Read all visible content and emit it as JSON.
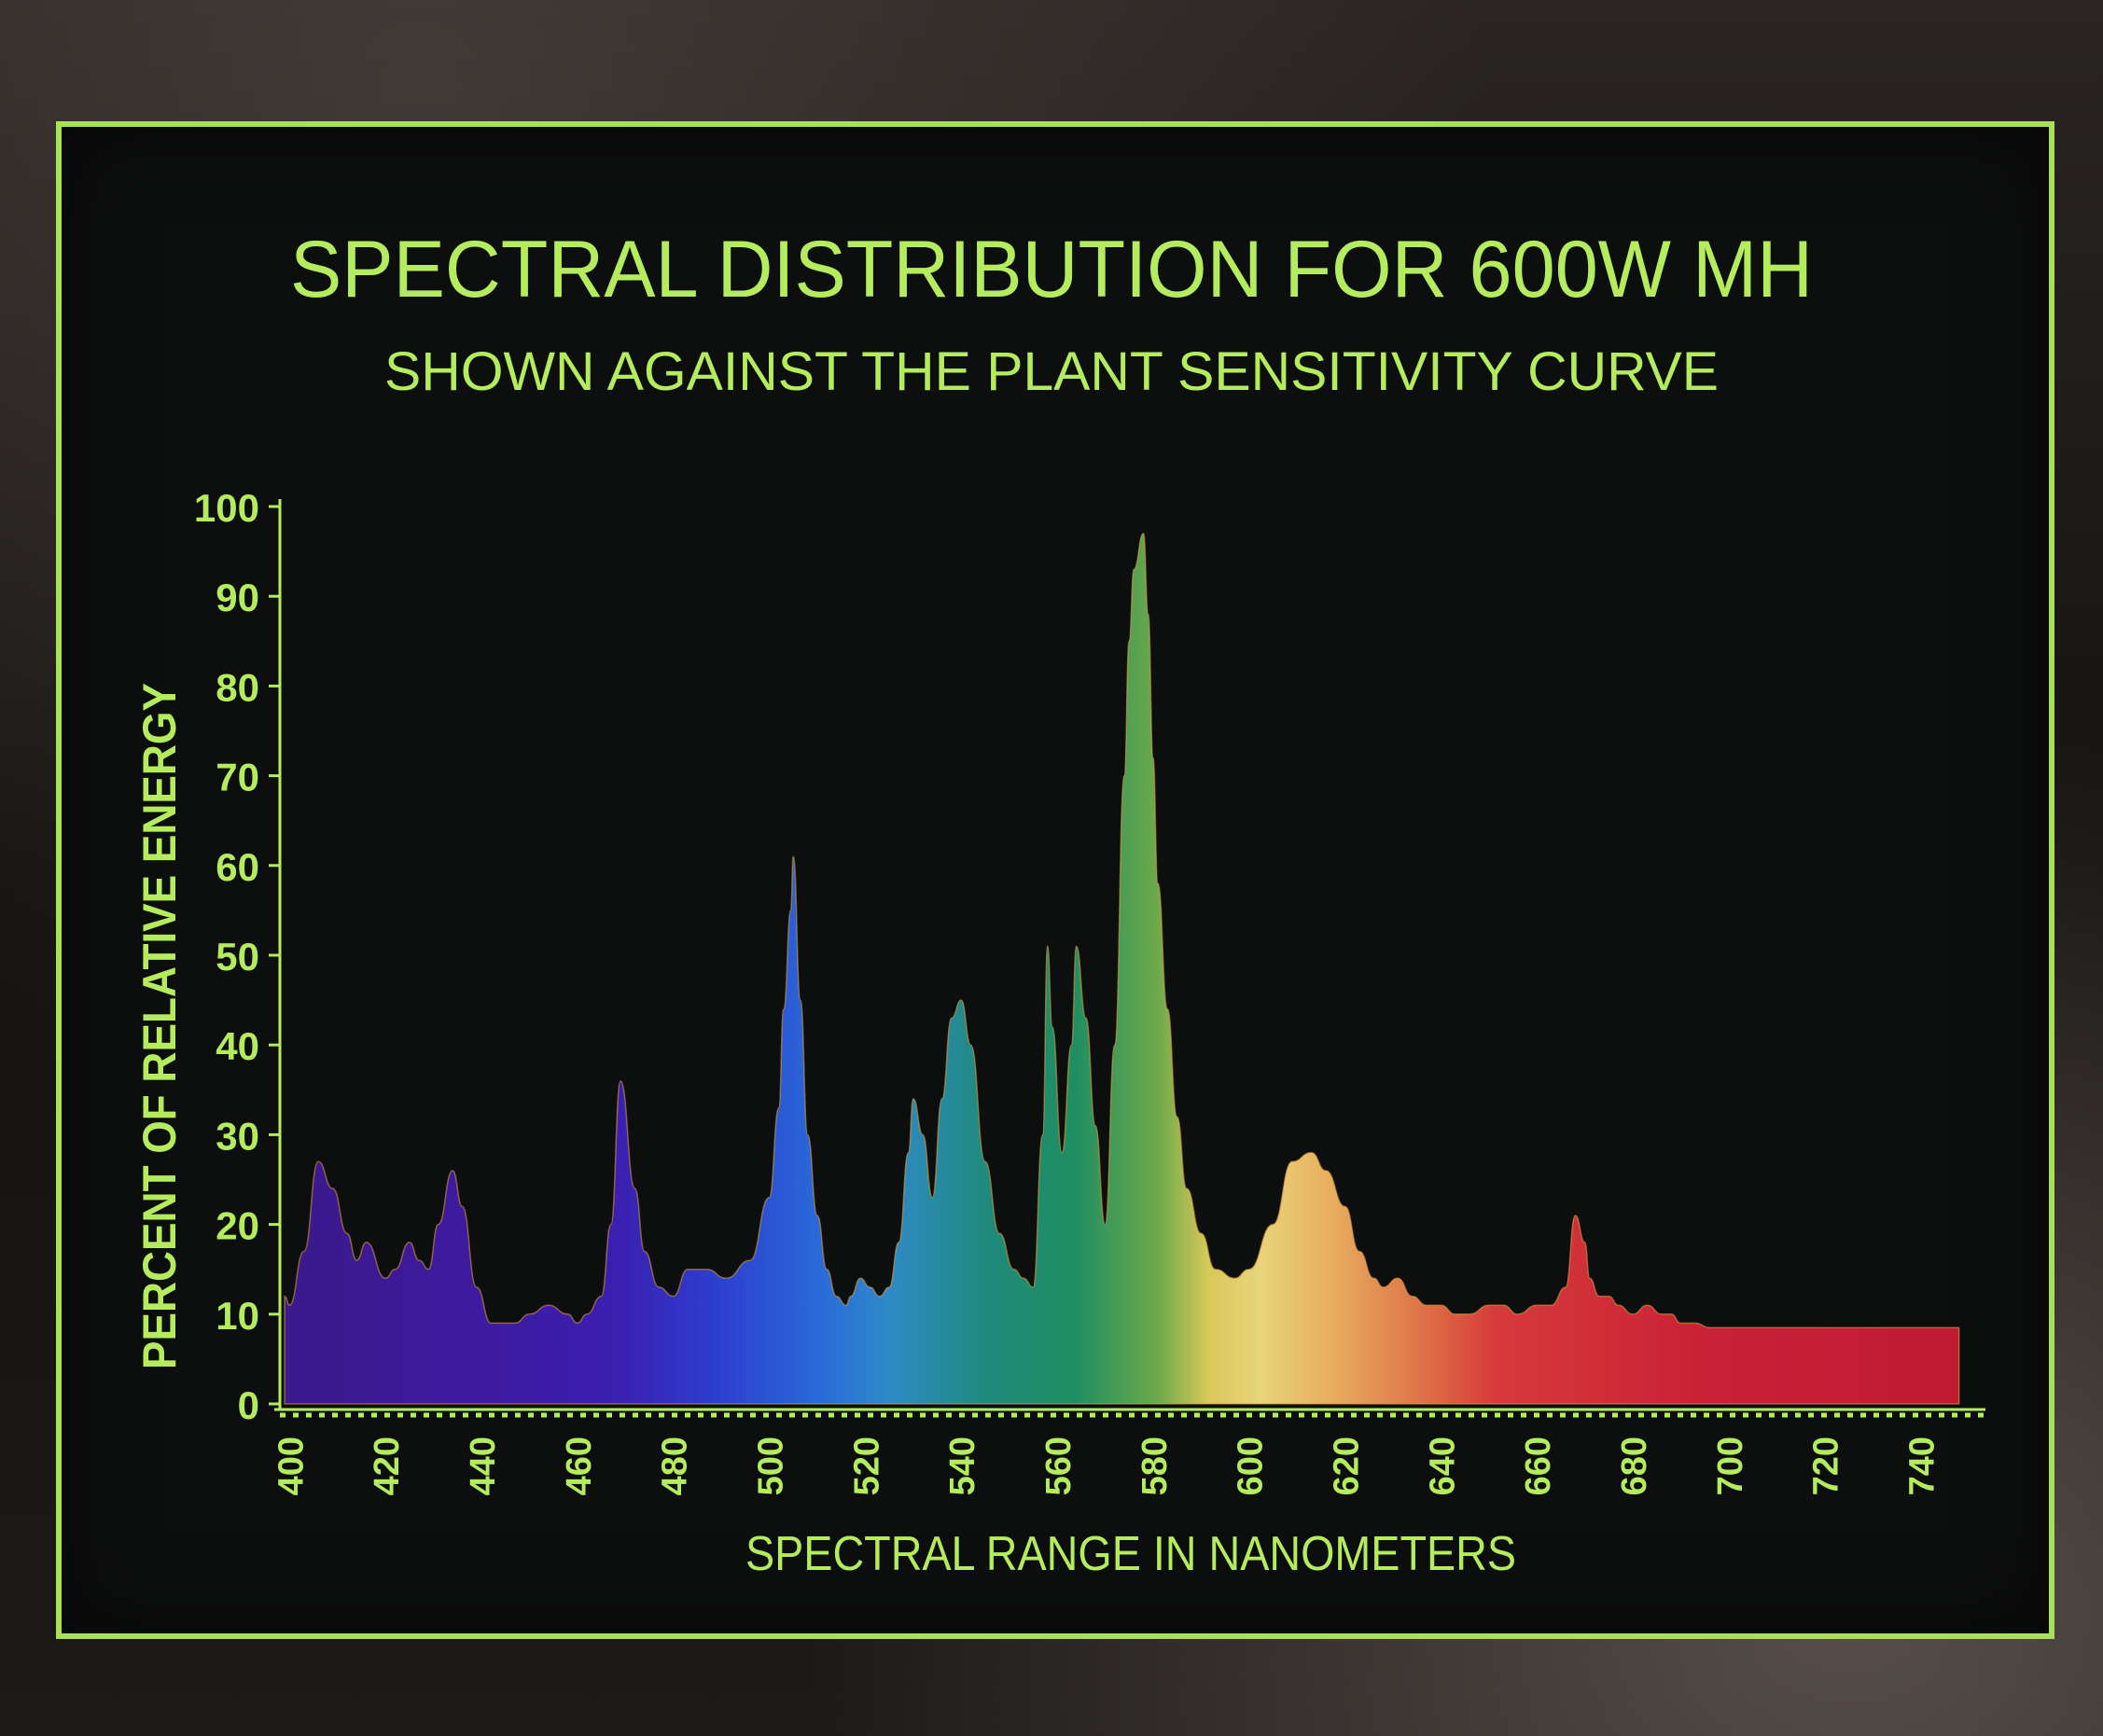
{
  "colors": {
    "accent": "#b4ec5e",
    "frame": "#a8e05a",
    "panel": "#0d0f0e"
  },
  "chart_data": {
    "type": "area",
    "title": "SPECTRAL DISTRIBUTION FOR 600W MH",
    "subtitle": "SHOWN AGAINST THE PLANT SENSITIVITY CURVE",
    "xlabel": "SPECTRAL RANGE IN NANOMETERS",
    "ylabel": "PERCENT OF RELATIVE ENERGY",
    "xlim": [
      398,
      750
    ],
    "ylim": [
      0,
      100
    ],
    "x_ticks": [
      "400",
      "420",
      "440",
      "460",
      "480",
      "500",
      "520",
      "540",
      "560",
      "580",
      "600",
      "620",
      "640",
      "660",
      "680",
      "700",
      "720",
      "740"
    ],
    "y_ticks": [
      "0",
      "10",
      "20",
      "30",
      "40",
      "50",
      "60",
      "70",
      "80",
      "90",
      "100"
    ],
    "grid": false,
    "legend": "none",
    "fill": "spectrum gradient from violet to red",
    "series": [
      {
        "x": [
          399,
          400,
          403,
          406,
          409,
          412,
          414,
          416,
          420,
          422,
          425,
          427,
          429,
          431,
          434,
          436,
          439,
          442,
          447,
          450,
          454,
          458,
          460,
          462,
          465,
          467,
          469,
          472,
          474,
          477,
          480,
          483,
          487,
          491,
          496,
          500,
          502,
          503,
          504.5,
          505,
          506.5,
          508,
          510,
          512,
          514,
          516,
          517,
          519,
          521,
          523,
          525,
          527,
          529,
          530,
          532,
          534,
          536,
          538,
          540,
          542,
          545,
          548,
          551,
          553,
          555,
          557,
          558,
          559,
          561,
          563,
          564,
          566,
          568,
          570,
          572,
          574,
          575,
          576,
          578,
          579,
          580,
          581,
          583,
          585,
          587,
          590,
          593,
          597,
          600,
          605,
          609,
          613,
          616,
          620,
          623,
          626,
          628,
          631,
          634,
          637,
          640,
          643,
          646,
          650,
          653,
          656,
          660,
          663,
          666,
          668,
          670,
          671,
          673,
          675,
          677,
          680,
          683,
          686,
          688,
          690,
          693,
          696,
          699,
          702,
          705,
          710,
          720,
          730,
          740,
          748
        ],
        "y": [
          12,
          11,
          17,
          27,
          24,
          19,
          16,
          18,
          14,
          15,
          18,
          16,
          15,
          20,
          26,
          22,
          13,
          9,
          9,
          10,
          11,
          10,
          9,
          10,
          12,
          20,
          36,
          24,
          17,
          13,
          12,
          15,
          15,
          14,
          16,
          23,
          33,
          44,
          55,
          61,
          45,
          30,
          21,
          15,
          12,
          11,
          12,
          14,
          13,
          12,
          13,
          18,
          28,
          34,
          30,
          23,
          34,
          43,
          45,
          40,
          27,
          19,
          15,
          14,
          13,
          30,
          51,
          42,
          28,
          40,
          51,
          43,
          31,
          20,
          40,
          70,
          85,
          93,
          97,
          88,
          72,
          58,
          44,
          32,
          24,
          19,
          15,
          14,
          15,
          20,
          27,
          28,
          26,
          22,
          17,
          14,
          13,
          14,
          12,
          11,
          11,
          10,
          10,
          11,
          11,
          10,
          11,
          11,
          13,
          21,
          18,
          14,
          12,
          12,
          11,
          10,
          11,
          10,
          10,
          9,
          9,
          8.5,
          8.5,
          8.5,
          8.5,
          8.5,
          8.5,
          8.5,
          8.5,
          8.5
        ]
      }
    ]
  }
}
